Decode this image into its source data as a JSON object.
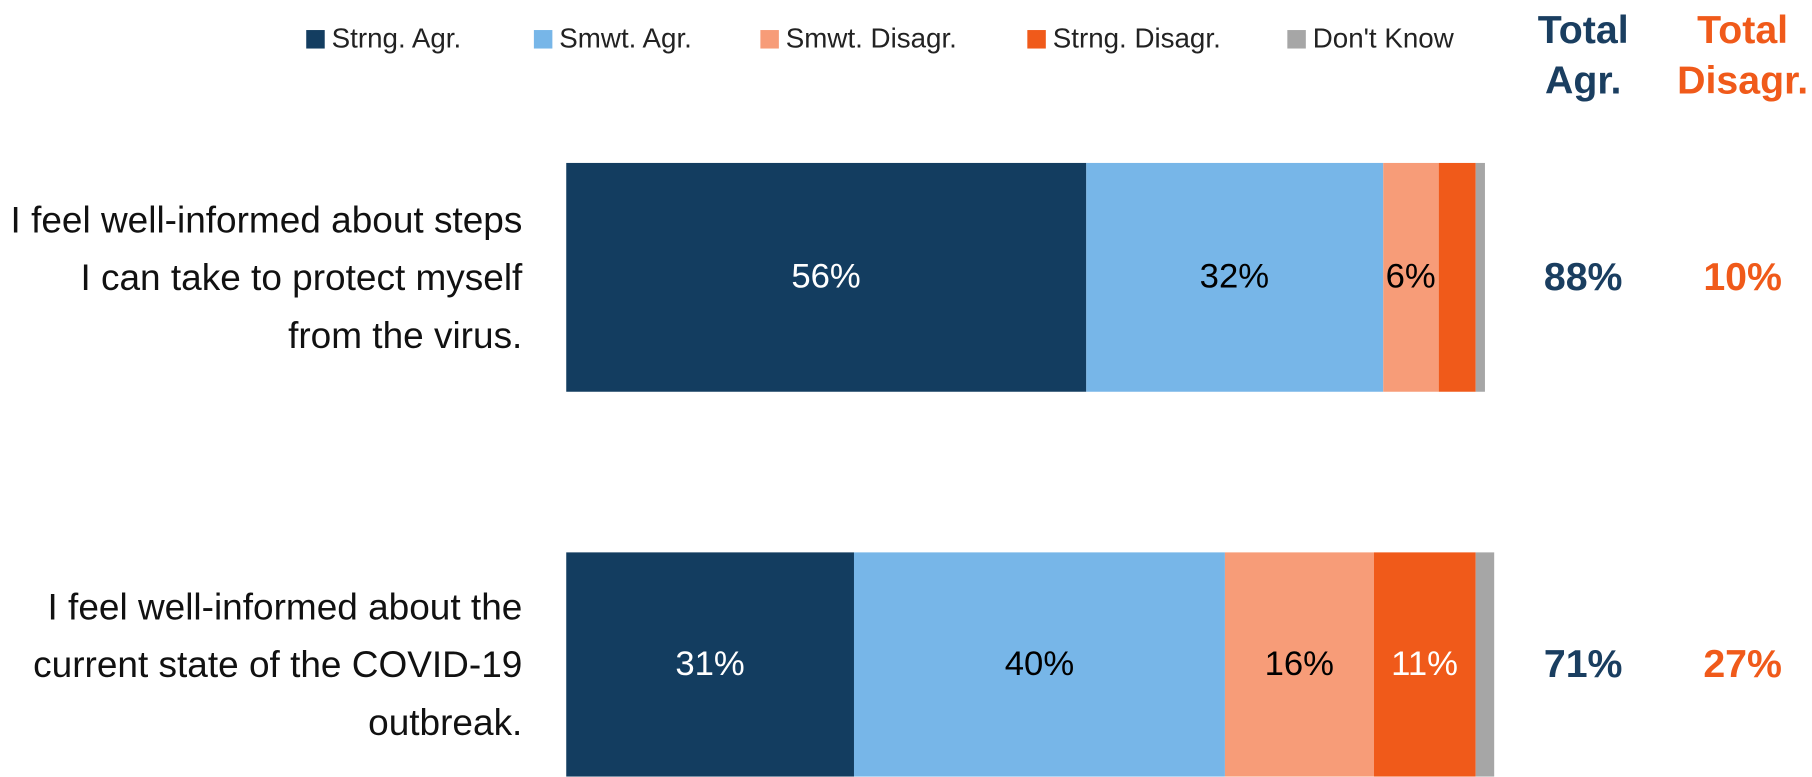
{
  "chart_data": {
    "type": "stacked_barh",
    "categories": [
      "I feel well-informed about steps I can take to protect myself from the virus.",
      "I feel well-informed about the current state of the COVID-19 outbreak."
    ],
    "xlim": [
      0,
      100
    ],
    "legend": "top",
    "series": [
      {
        "name": "Strng. Agr.",
        "color": "#133d60",
        "label_color": "#ffffff",
        "values": [
          56,
          31
        ],
        "value_labels": [
          "56%",
          "31%"
        ]
      },
      {
        "name": "Smwt. Agr.",
        "color": "#77b6e8",
        "label_color": "#000000",
        "values": [
          32,
          40
        ],
        "value_labels": [
          "32%",
          "40%"
        ]
      },
      {
        "name": "Smwt. Disagr.",
        "color": "#f79c78",
        "label_color": "#000000",
        "values": [
          6,
          16
        ],
        "value_labels": [
          "6%",
          "16%"
        ]
      },
      {
        "name": "Strng. Disagr.",
        "color": "#f05a1a",
        "label_color": "#ffffff",
        "values": [
          4,
          11
        ],
        "value_labels": [
          null,
          "11%"
        ]
      },
      {
        "name": "Don't Know",
        "color": "#a6a6a6",
        "label_color": "#000000",
        "values": [
          1,
          2
        ],
        "value_labels": [
          null,
          null
        ]
      }
    ],
    "total_columns": [
      {
        "name": "Total Agr.",
        "color": "#1a3e60",
        "values": [
          88,
          71
        ],
        "value_labels": [
          "88%",
          "71%"
        ]
      },
      {
        "name": "Total Disagr.",
        "color": "#f05a1a",
        "values": [
          10,
          27
        ],
        "value_labels": [
          "10%",
          "27%"
        ]
      }
    ]
  }
}
